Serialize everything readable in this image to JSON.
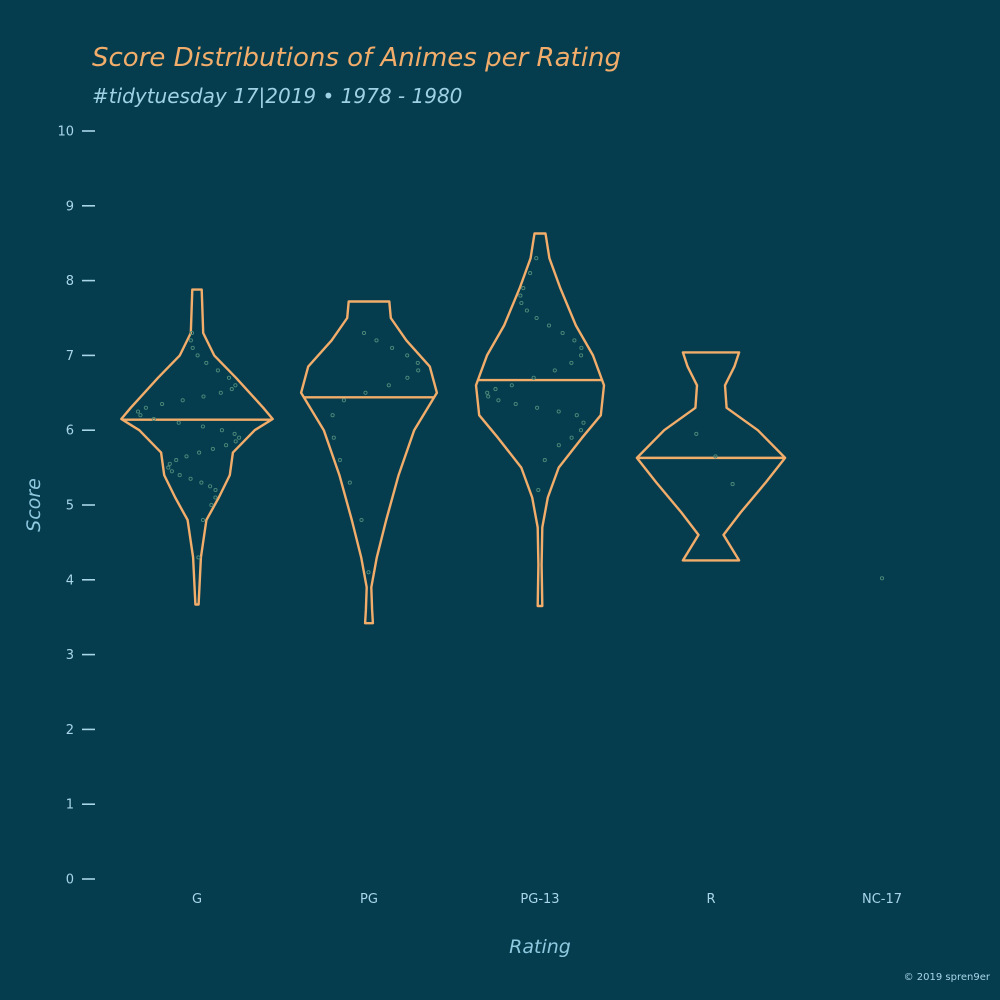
{
  "title": "Score Distributions of Animes per Rating",
  "subtitle": "#tidytuesday 17|2019 • 1978 - 1980",
  "caption": "© 2019 spren9er",
  "colors": {
    "background": "#053d4e",
    "violin": "#f2ad6b",
    "points": "#4f8a7a",
    "title": "#f2ad6b",
    "text": "#a8d6e8"
  },
  "chart_data": {
    "type": "violin",
    "xlabel": "Rating",
    "ylabel": "Score",
    "ylim": [
      0,
      10
    ],
    "yticks": [
      0,
      1,
      2,
      3,
      4,
      5,
      6,
      7,
      8,
      9,
      10
    ],
    "categories": [
      "G",
      "PG",
      "PG-13",
      "R",
      "NC-17"
    ],
    "grid": false,
    "legend": "none",
    "series": [
      {
        "category": "G",
        "min": 3.67,
        "max": 7.88,
        "median": 6.14,
        "density_profile": [
          [
            3.67,
            0.02
          ],
          [
            4.3,
            0.05
          ],
          [
            4.8,
            0.12
          ],
          [
            5.1,
            0.28
          ],
          [
            5.4,
            0.42
          ],
          [
            5.7,
            0.46
          ],
          [
            6.0,
            0.74
          ],
          [
            6.15,
            0.97
          ],
          [
            6.3,
            0.85
          ],
          [
            6.7,
            0.5
          ],
          [
            7.0,
            0.22
          ],
          [
            7.3,
            0.08
          ],
          [
            7.88,
            0.06
          ]
        ],
        "points": [
          4.3,
          4.8,
          5.0,
          5.1,
          5.2,
          5.25,
          5.3,
          5.35,
          5.4,
          5.45,
          5.5,
          5.55,
          5.6,
          5.65,
          5.7,
          5.75,
          5.8,
          5.85,
          5.9,
          5.95,
          6.0,
          6.05,
          6.1,
          6.15,
          6.2,
          6.25,
          6.3,
          6.35,
          6.4,
          6.45,
          6.5,
          6.55,
          6.6,
          6.7,
          6.8,
          6.9,
          7.0,
          7.1,
          7.2,
          7.3
        ]
      },
      {
        "category": "PG",
        "min": 3.42,
        "max": 7.72,
        "median": 6.44,
        "density_profile": [
          [
            3.42,
            0.05
          ],
          [
            3.6,
            0.04
          ],
          [
            3.9,
            0.03
          ],
          [
            4.3,
            0.1
          ],
          [
            4.8,
            0.22
          ],
          [
            5.4,
            0.38
          ],
          [
            6.0,
            0.58
          ],
          [
            6.5,
            0.87
          ],
          [
            6.85,
            0.78
          ],
          [
            7.2,
            0.48
          ],
          [
            7.5,
            0.28
          ],
          [
            7.72,
            0.26
          ]
        ],
        "points": [
          4.1,
          4.8,
          5.3,
          5.6,
          5.9,
          6.2,
          6.4,
          6.5,
          6.6,
          6.7,
          6.8,
          6.9,
          7.0,
          7.1,
          7.2,
          7.3
        ]
      },
      {
        "category": "PG-13",
        "min": 3.65,
        "max": 8.63,
        "median": 6.67,
        "density_profile": [
          [
            3.65,
            0.03
          ],
          [
            4.2,
            0.02
          ],
          [
            4.7,
            0.03
          ],
          [
            5.1,
            0.1
          ],
          [
            5.5,
            0.24
          ],
          [
            5.9,
            0.54
          ],
          [
            6.2,
            0.78
          ],
          [
            6.6,
            0.82
          ],
          [
            7.0,
            0.68
          ],
          [
            7.4,
            0.46
          ],
          [
            7.9,
            0.26
          ],
          [
            8.3,
            0.12
          ],
          [
            8.63,
            0.07
          ]
        ],
        "points": [
          5.2,
          5.6,
          5.8,
          5.9,
          6.0,
          6.1,
          6.2,
          6.25,
          6.3,
          6.35,
          6.4,
          6.45,
          6.5,
          6.55,
          6.6,
          6.7,
          6.8,
          6.9,
          7.0,
          7.1,
          7.2,
          7.3,
          7.4,
          7.5,
          7.6,
          7.7,
          7.8,
          7.9,
          8.1,
          8.3
        ]
      },
      {
        "category": "R",
        "min": 4.26,
        "max": 7.04,
        "median": 5.63,
        "density_profile": [
          [
            4.26,
            0.36
          ],
          [
            4.6,
            0.16
          ],
          [
            4.9,
            0.38
          ],
          [
            5.3,
            0.7
          ],
          [
            5.63,
            0.95
          ],
          [
            6.0,
            0.6
          ],
          [
            6.3,
            0.2
          ],
          [
            6.6,
            0.18
          ],
          [
            6.85,
            0.3
          ],
          [
            7.04,
            0.36
          ]
        ],
        "points": [
          5.28,
          5.65,
          5.95
        ]
      },
      {
        "category": "NC-17",
        "min": 4.02,
        "max": 4.02,
        "median": 4.02,
        "density_profile": [],
        "points": [
          4.02
        ]
      }
    ]
  }
}
